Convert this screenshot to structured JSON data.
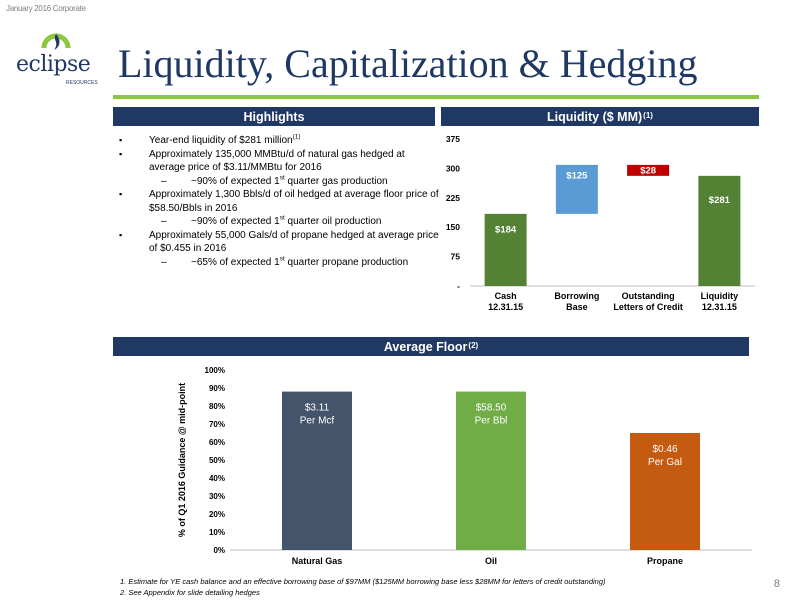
{
  "header_tag": "January 2016 Corporate",
  "logo": {
    "name": "eclipse",
    "sub": "RESOURCES"
  },
  "title": "Liquidity, Capitalization & Hedging",
  "highlights": {
    "header": "Highlights",
    "items": [
      {
        "level": 1,
        "text": "Year-end liquidity of $281 million",
        "sup": "(1)"
      },
      {
        "level": 1,
        "text": "Approximately 135,000 MMBtu/d of natural gas hedged at average price of $3.11/MMBtu for 2016"
      },
      {
        "level": 2,
        "pre": "~90% of expected 1",
        "sup": "st",
        "post": " quarter gas production"
      },
      {
        "level": 1,
        "text": "Approximately 1,300 Bbls/d of oil hedged at average floor price of $58.50/Bbls in 2016"
      },
      {
        "level": 2,
        "pre": "~90% of expected 1",
        "sup": "st",
        "post": " quarter oil production"
      },
      {
        "level": 1,
        "text": "Approximately 55,000 Gals/d of propane hedged at average price of $0.455 in 2016"
      },
      {
        "level": 2,
        "pre": "~65% of expected 1",
        "sup": "st",
        "post": " quarter propane production"
      }
    ]
  },
  "liquidity": {
    "header": "Liquidity ($ MM)",
    "header_sup": "(1)"
  },
  "average_floor": {
    "header": "Average Floor",
    "header_sup": "(2)"
  },
  "chart_data": [
    {
      "type": "bar",
      "variant": "waterfall",
      "categories": [
        [
          "Cash",
          "12.31.15"
        ],
        [
          "Borrowing",
          "Base"
        ],
        [
          "Outstanding",
          "Letters of Credit"
        ],
        [
          "Liquidity",
          "12.31.15"
        ]
      ],
      "bars": [
        {
          "base": 0,
          "top": 184,
          "label": "$184",
          "color": "#548235"
        },
        {
          "base": 184,
          "top": 309,
          "label": "$125",
          "color": "#5b9bd5"
        },
        {
          "base": 281,
          "top": 309,
          "label": "$28",
          "color": "#c00000"
        },
        {
          "base": 0,
          "top": 281,
          "label": "$281",
          "color": "#548235"
        }
      ],
      "yticks": [
        "-",
        "75",
        "150",
        "225",
        "300",
        "375"
      ],
      "ylim": [
        0,
        375
      ],
      "grid": false,
      "legend": "none"
    },
    {
      "type": "bar",
      "categories": [
        "Natural Gas",
        "Oil",
        "Propane"
      ],
      "values": [
        88,
        88,
        65
      ],
      "labels": [
        [
          "$3.11",
          "Per Mcf"
        ],
        [
          "$58.50",
          "Per Bbl"
        ],
        [
          "$0.46",
          "Per Gal"
        ]
      ],
      "colors": [
        "#44546a",
        "#70ad47",
        "#c55a11"
      ],
      "ylabel": "% of Q1 2016 Guidance @ mid-point",
      "yticks": [
        "0%",
        "10%",
        "20%",
        "30%",
        "40%",
        "50%",
        "60%",
        "70%",
        "80%",
        "90%",
        "100%"
      ],
      "ylim": [
        0,
        100
      ],
      "grid": false,
      "legend": "none"
    }
  ],
  "footnotes": [
    "1. Estimate for YE cash balance and an effective borrowing base of $97MM ($125MM borrowing base less $28MM for letters of credit outstanding)",
    "2. See Appendix for slide detailing hedges"
  ],
  "page_number": "8"
}
